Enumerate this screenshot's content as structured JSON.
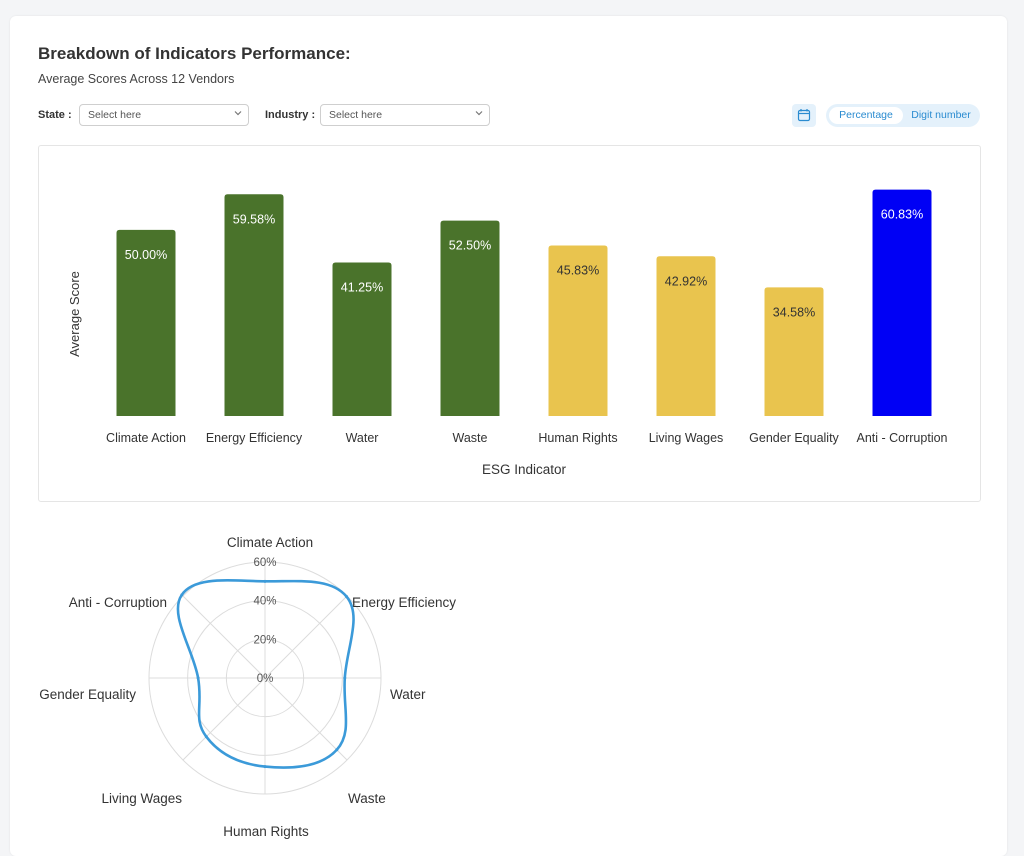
{
  "header": {
    "title": "Breakdown of Indicators Performance:",
    "subtitle": "Average Scores Across 12 Vendors"
  },
  "filters": {
    "state_label": "State :",
    "state_placeholder": "Select here",
    "industry_label": "Industry :",
    "industry_placeholder": "Select here"
  },
  "toolbar": {
    "calendar_icon": "calendar-icon",
    "toggle_percentage": "Percentage",
    "toggle_digit": "Digit number"
  },
  "colors": {
    "environmental": "#4a732b",
    "social": "#e9c44e",
    "governance": "#0000f5",
    "radar_line": "#3b9ad9"
  },
  "chart_data": [
    {
      "type": "bar",
      "xlabel": "ESG Indicator",
      "ylabel": "Average Score",
      "categories": [
        "Climate Action",
        "Energy Efficiency",
        "Water",
        "Waste",
        "Human Rights",
        "Living Wages",
        "Gender Equality",
        "Anti - Corruption"
      ],
      "values": [
        50.0,
        59.58,
        41.25,
        52.5,
        45.83,
        42.92,
        34.58,
        60.83
      ],
      "data_labels": [
        "50.00%",
        "59.58%",
        "41.25%",
        "52.50%",
        "45.83%",
        "42.92%",
        "34.58%",
        "60.83%"
      ],
      "bar_colors": [
        "#4a732b",
        "#4a732b",
        "#4a732b",
        "#4a732b",
        "#e9c44e",
        "#e9c44e",
        "#e9c44e",
        "#0000f5"
      ],
      "ylim": [
        0,
        61
      ],
      "grid": false
    },
    {
      "type": "radar",
      "categories": [
        "Climate Action",
        "Energy Efficiency",
        "Water",
        "Waste",
        "Human Rights",
        "Living Wages",
        "Gender Equality",
        "Anti - Corruption"
      ],
      "values": [
        50.0,
        59.58,
        41.25,
        52.5,
        45.83,
        42.92,
        34.58,
        60.83
      ],
      "tick_labels": [
        "0%",
        "20%",
        "40%",
        "60%"
      ],
      "rlim": [
        0,
        60
      ],
      "grid": true
    }
  ]
}
